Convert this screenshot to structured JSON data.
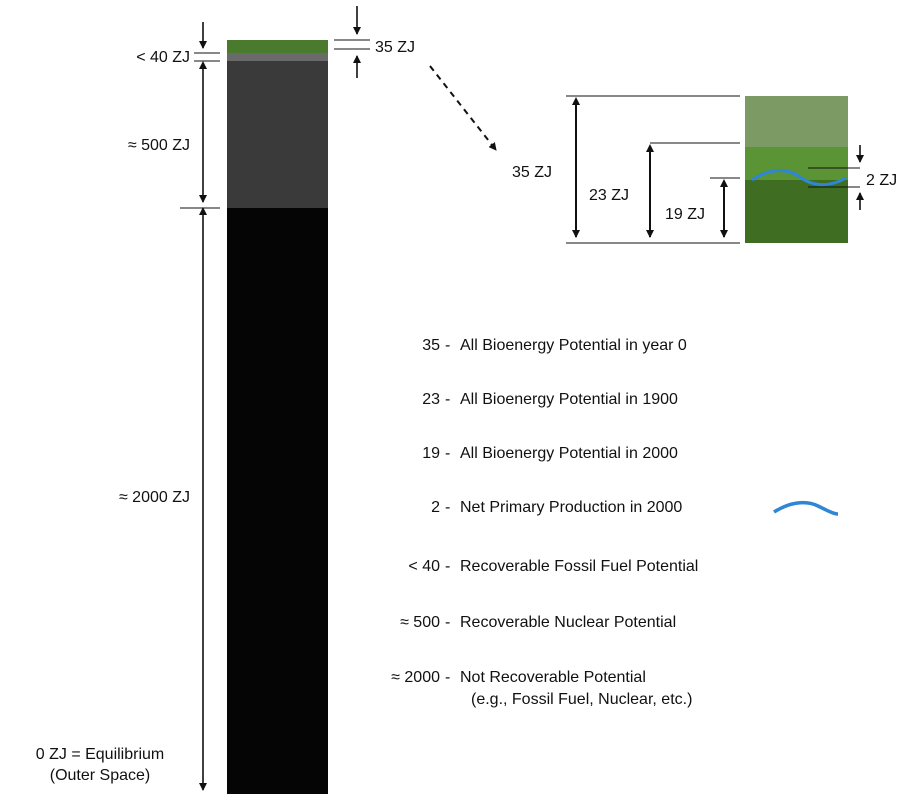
{
  "colors": {
    "bio_top": "#4a7a2e",
    "fossil": "#6a6a6a",
    "nuclear": "#3a3a3a",
    "not_recoverable": "#050505",
    "zoom_top": "#7b9a64",
    "zoom_mid": "#5a9435",
    "zoom_bottom": "#3f6e23",
    "npp_wave": "#2e86d4"
  },
  "column_labels": {
    "fossil": "< 40 ZJ",
    "nuclear": "≈ 500 ZJ",
    "not_recoverable": "≈ 2000 ZJ",
    "bioenergy": "35 ZJ",
    "equilibrium_line1": "0 ZJ = Equilibrium",
    "equilibrium_line2": "(Outer Space)"
  },
  "zoom_labels": {
    "year0": "35 ZJ",
    "y1900": "23 ZJ",
    "y2000": "19 ZJ",
    "npp": "2 ZJ"
  },
  "legend": [
    {
      "value": "35",
      "text": "All Bioenergy Potential in year 0"
    },
    {
      "value": "23",
      "text": "All Bioenergy Potential in 1900"
    },
    {
      "value": "19",
      "text": "All Bioenergy Potential in 2000"
    },
    {
      "value": "2",
      "text": "Net Primary Production in 2000"
    },
    {
      "value": "< 40",
      "text": "Recoverable Fossil Fuel Potential"
    },
    {
      "value": "≈ 500",
      "text": "Recoverable Nuclear Potential"
    },
    {
      "value": "≈ 2000",
      "text": "Not Recoverable Potential",
      "text2": "(e.g., Fossil Fuel, Nuclear, etc.)"
    }
  ]
}
